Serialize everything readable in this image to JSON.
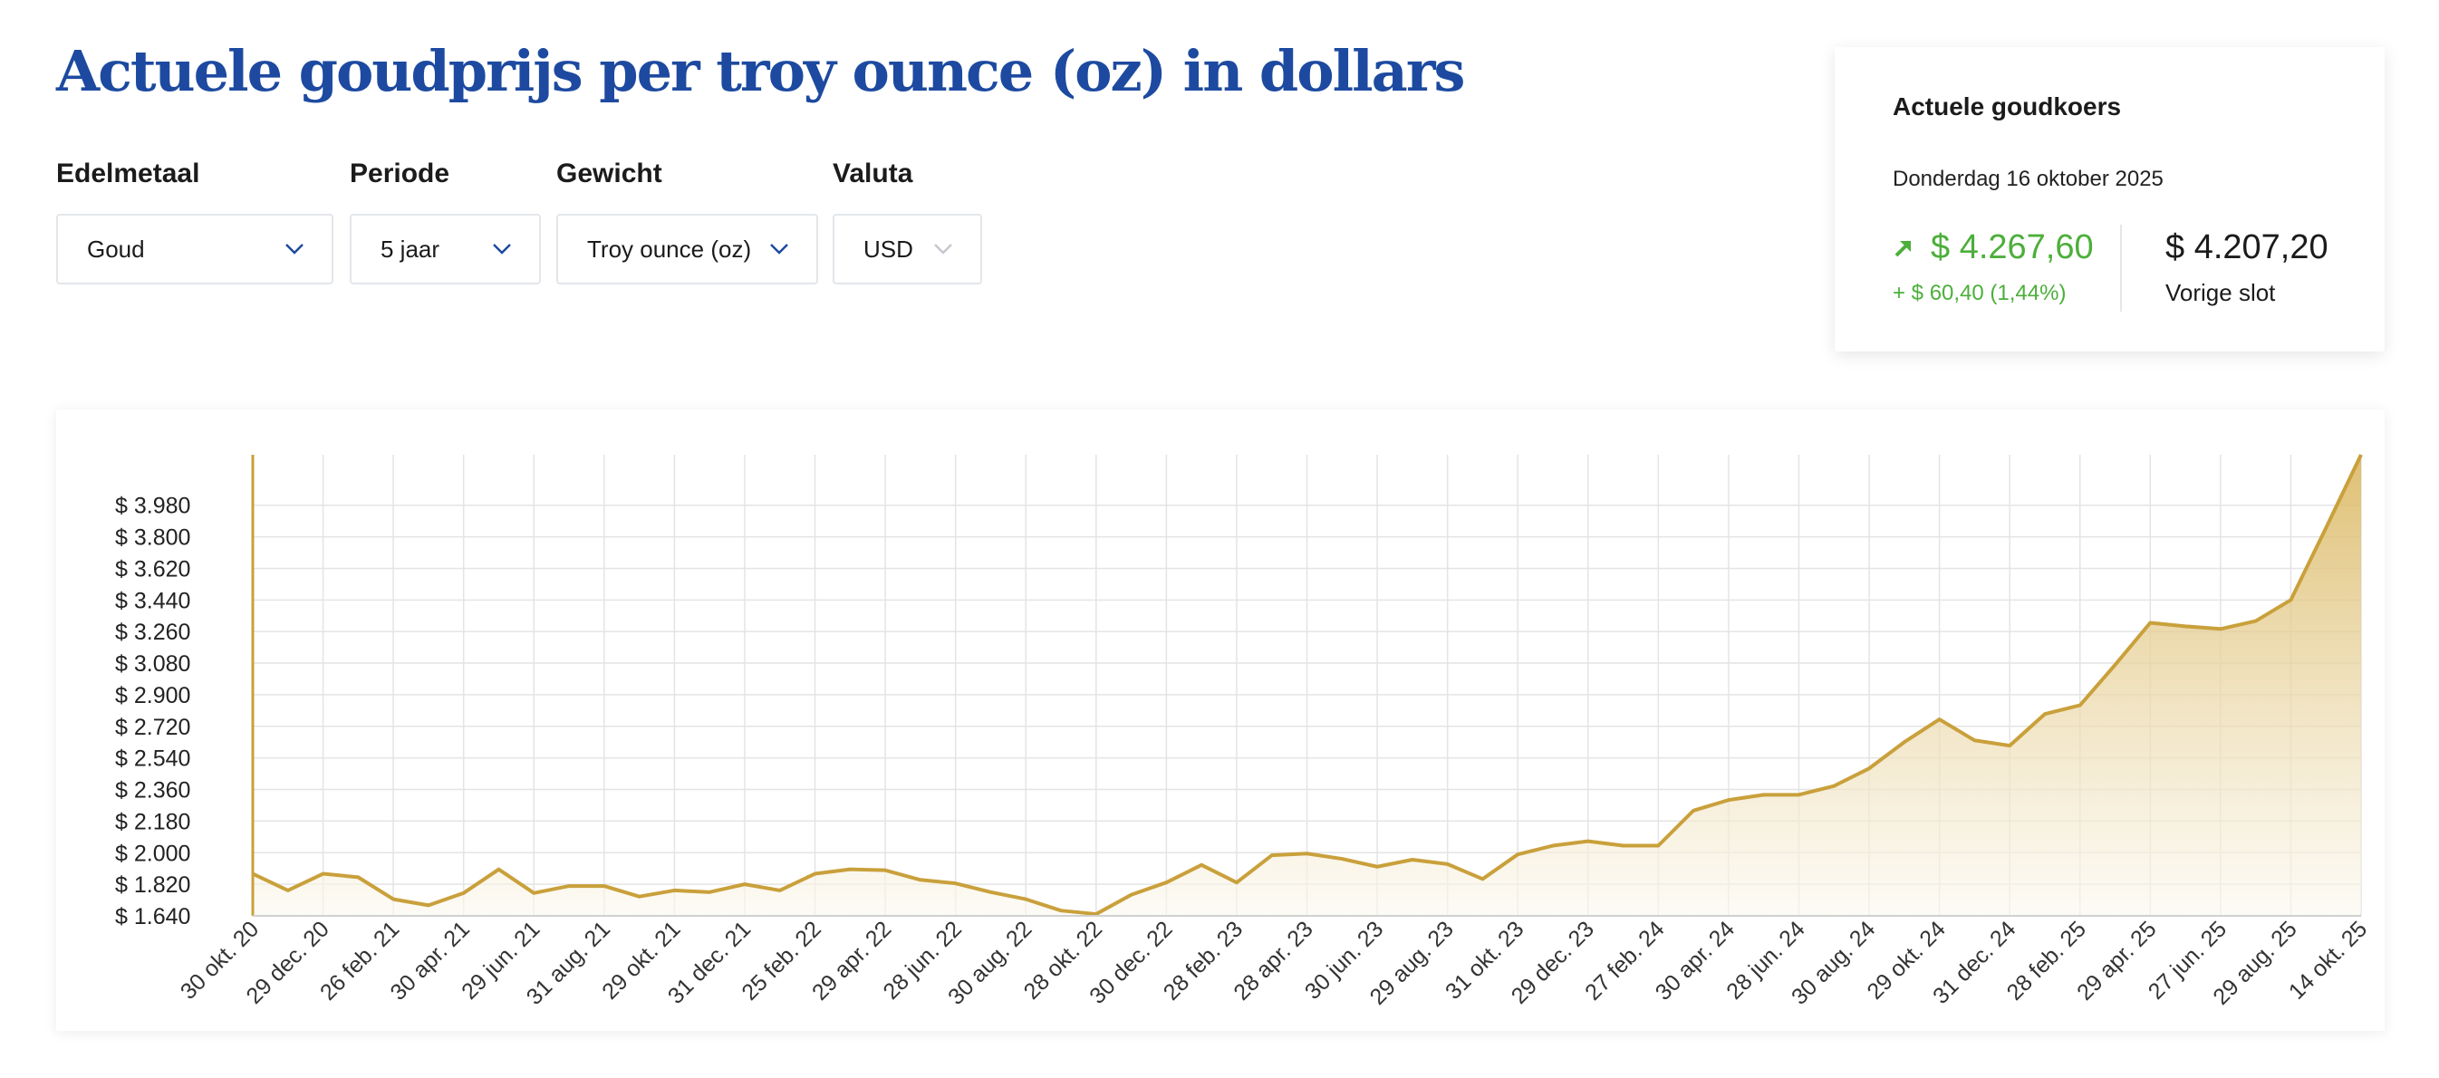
{
  "page": {
    "title": "Actuele goudprijs per troy ounce (oz) in dollars"
  },
  "filters": [
    {
      "label": "Edelmetaal",
      "value": "Goud"
    },
    {
      "label": "Periode",
      "value": "5 jaar"
    },
    {
      "label": "Gewicht",
      "value": "Troy ounce (oz)"
    },
    {
      "label": "Valuta",
      "value": "USD"
    }
  ],
  "price_card": {
    "title": "Actuele goudkoers",
    "date": "Donderdag 16 oktober 2025",
    "current_price": "$ 4.267,60",
    "change": "+ $ 60,40 (1,44%)",
    "previous_price": "$ 4.207,20",
    "previous_label": "Vorige slot",
    "up_color": "#4caf3a",
    "icon": "trend-up-arrow-icon"
  },
  "colors": {
    "title": "#1d4aa0",
    "line": "#c9a03b",
    "area_top": "#d9b45a",
    "area_bottom": "#fbf8ee",
    "up": "#4caf3a"
  },
  "chart_data": {
    "type": "area",
    "title": "",
    "xlabel": "",
    "ylabel": "",
    "ylim": [
      1640,
      4267.6
    ],
    "y_ticks": [
      "$ 1.640",
      "$ 1.820",
      "$ 2.000",
      "$ 2.180",
      "$ 2.360",
      "$ 2.540",
      "$ 2.720",
      "$ 2.900",
      "$ 3.080",
      "$ 3.260",
      "$ 3.440",
      "$ 3.620",
      "$ 3.800",
      "$ 3.980"
    ],
    "x_tick_labels": [
      "30 okt. 20",
      "29 dec. 20",
      "26 feb. 21",
      "30 apr. 21",
      "29 jun. 21",
      "31 aug. 21",
      "29 okt. 21",
      "31 dec. 21",
      "25 feb. 22",
      "29 apr. 22",
      "28 jun. 22",
      "30 aug. 22",
      "28 okt. 22",
      "30 dec. 22",
      "28 feb. 23",
      "28 apr. 23",
      "30 jun. 23",
      "29 aug. 23",
      "31 okt. 23",
      "29 dec. 23",
      "27 feb. 24",
      "30 apr. 24",
      "28 jun. 24",
      "30 aug. 24",
      "29 okt. 24",
      "31 dec. 24",
      "28 feb. 25",
      "29 apr. 25",
      "27 jun. 25",
      "29 aug. 25",
      "14 okt. 25"
    ],
    "grid": true,
    "legend": "none",
    "series": [
      {
        "values": [
          1880,
          1785,
          1880,
          1860,
          1735,
          1700,
          1770,
          1905,
          1770,
          1810,
          1810,
          1750,
          1785,
          1775,
          1820,
          1785,
          1880,
          1905,
          1900,
          1845,
          1825,
          1775,
          1735,
          1670,
          1650,
          1760,
          1830,
          1930,
          1830,
          1985,
          1995,
          1965,
          1920,
          1960,
          1935,
          1850,
          1990,
          2040,
          2065,
          2040,
          2040,
          2240,
          2300,
          2330,
          2330,
          2380,
          2480,
          2630,
          2760,
          2640,
          2610,
          2790,
          2840,
          3070,
          3310,
          3290,
          3275,
          3320,
          3440,
          3850,
          4267.6
        ]
      }
    ]
  }
}
